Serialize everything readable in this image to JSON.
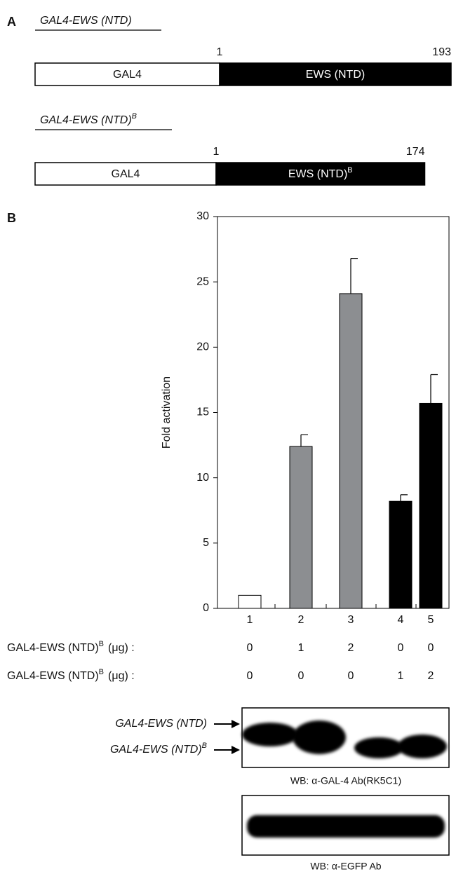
{
  "panel_a": {
    "label": "A",
    "constructs": [
      {
        "title": {
          "text": "GAL4-EWS (NTD)"
        },
        "start": 1,
        "end": 193,
        "left": {
          "text": "GAL4"
        },
        "right": {
          "text": "EWS (NTD)"
        }
      },
      {
        "title": {
          "text": "GAL4-EWS (NTD)",
          "sup": "B"
        },
        "start": 1,
        "end": 174,
        "left": {
          "text": "GAL4"
        },
        "right": {
          "text": "EWS (NTD)",
          "sup": "B"
        }
      }
    ]
  },
  "panel_b": {
    "label": "B"
  },
  "chart_data": {
    "type": "bar",
    "ylabel": "Fold activation",
    "categories": [
      "1",
      "2",
      "3",
      "4",
      "5"
    ],
    "values": [
      1,
      12.4,
      24.1,
      8.2,
      15.7
    ],
    "errors": [
      null,
      0.9,
      2.7,
      0.5,
      2.2
    ],
    "colors": [
      "#ffffff",
      "#8c8e91",
      "#8c8e91",
      "#000000",
      "#000000"
    ],
    "ylim": [
      0,
      30
    ],
    "yticks": [
      0,
      5,
      10,
      15,
      20,
      25,
      30
    ]
  },
  "dose_table": {
    "rows": [
      {
        "label": {
          "text": "GAL4-EWS (NTD)",
          "sup": "B",
          "unit": "(μg) :"
        },
        "values": [
          0,
          1,
          2,
          0,
          0
        ]
      },
      {
        "label": {
          "text": "GAL4-EWS (NTD)",
          "sup": "B",
          "unit": "(μg) :"
        },
        "values": [
          0,
          0,
          0,
          1,
          2
        ]
      }
    ]
  },
  "blots": {
    "markers": [
      {
        "text": "GAL4-EWS (NTD)"
      },
      {
        "text": "GAL4-EWS (NTD)",
        "sup": "B"
      }
    ],
    "captions": [
      "WB: α-GAL-4 Ab(RK5C1)",
      "WB: α-EGFP Ab"
    ]
  }
}
